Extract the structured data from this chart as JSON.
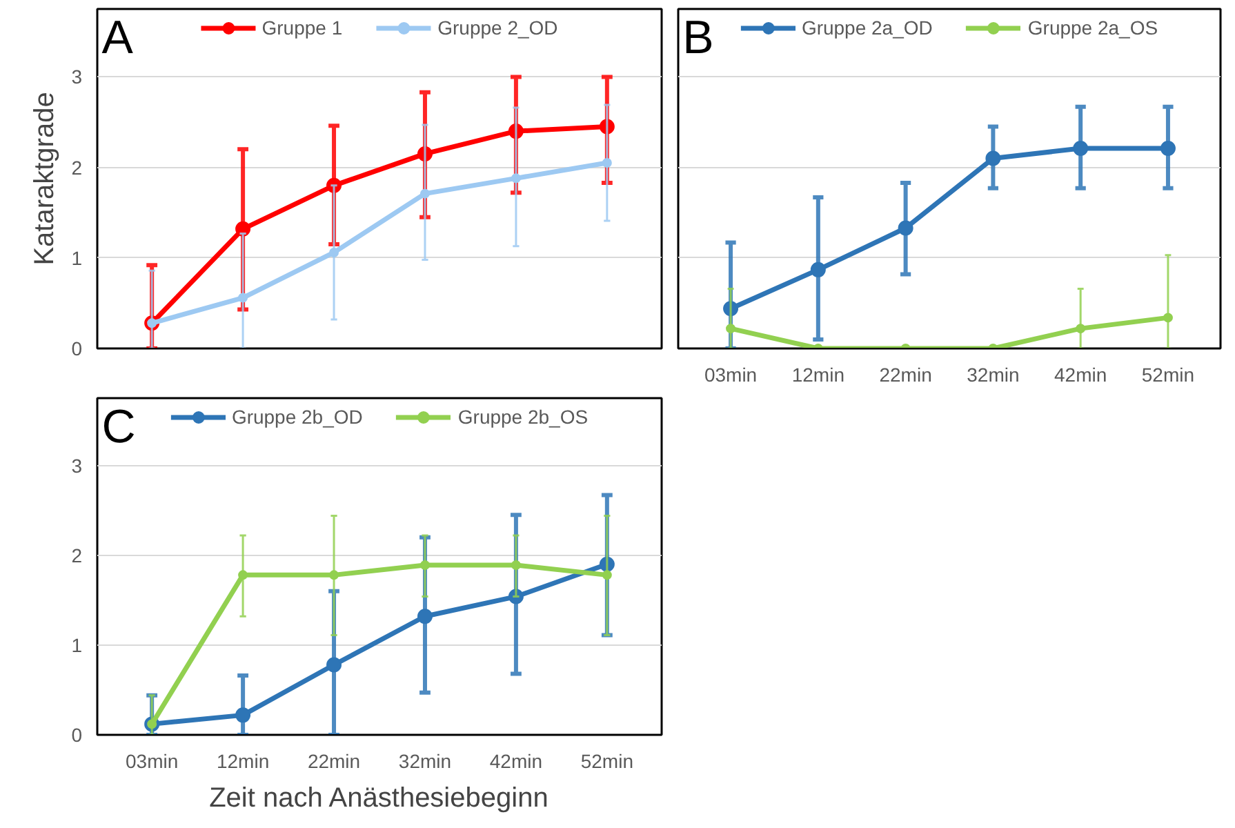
{
  "chart_data": [
    {
      "type": "line",
      "title": "A",
      "ylabel": "Kataraktgrade",
      "categories": [
        null,
        null,
        null,
        null,
        null,
        null
      ],
      "ylim": [
        0,
        3.75
      ],
      "yticks": [
        0,
        1,
        2,
        3
      ],
      "grid": "y",
      "legend": "top",
      "marker": "circle",
      "tick_labels": "y",
      "series": [
        {
          "name": "Gruppe 1",
          "color": "#ff0000",
          "values": [
            0.28,
            1.32,
            1.8,
            2.15,
            2.4,
            2.45
          ],
          "errors": [
            [
              0,
              0.92
            ],
            [
              0.43,
              2.2
            ],
            [
              1.15,
              2.46
            ],
            [
              1.45,
              2.83
            ],
            [
              1.72,
              3
            ],
            [
              1.83,
              3
            ]
          ]
        },
        {
          "name": "Gruppe 2_OD",
          "color": "#9dc9f2",
          "values": [
            0.28,
            0.56,
            1.06,
            1.71,
            1.88,
            2.05
          ],
          "errors": [
            [
              0,
              0.86
            ],
            [
              0,
              1.27
            ],
            [
              0.32,
              1.8
            ],
            [
              0.98,
              2.47
            ],
            [
              1.13,
              2.66
            ],
            [
              1.41,
              2.69
            ]
          ]
        }
      ]
    },
    {
      "type": "line",
      "title": "B",
      "categories": [
        "03min",
        "12min",
        "22min",
        "32min",
        "42min",
        "52min"
      ],
      "ylim": [
        0,
        3.75
      ],
      "yticks": [
        0,
        1,
        2,
        3
      ],
      "grid": "y",
      "legend": "top",
      "marker": "circle",
      "tick_labels": "x",
      "series": [
        {
          "name": "Gruppe 2a_OD",
          "color": "#2e75b6",
          "values": [
            0.44,
            0.87,
            1.33,
            2.1,
            2.21,
            2.21
          ],
          "errors": [
            [
              0,
              1.17
            ],
            [
              0.1,
              1.67
            ],
            [
              0.82,
              1.83
            ],
            [
              1.77,
              2.45
            ],
            [
              1.77,
              2.67
            ],
            [
              1.77,
              2.67
            ]
          ]
        },
        {
          "name": "Gruppe 2a_OS",
          "color": "#92d050",
          "values": [
            0.22,
            0,
            0,
            0,
            0.22,
            0.34
          ],
          "errors": [
            [
              0,
              0.66
            ],
            null,
            null,
            null,
            [
              0,
              0.66
            ],
            [
              0,
              1.03
            ]
          ]
        }
      ]
    },
    {
      "type": "line",
      "title": "C",
      "xlabel": "Zeit nach Anästhesiebeginn",
      "categories": [
        "03min",
        "12min",
        "22min",
        "32min",
        "42min",
        "52min"
      ],
      "ylim": [
        0,
        3.75
      ],
      "yticks": [
        0,
        1,
        2,
        3
      ],
      "grid": "y",
      "legend": "top",
      "marker": "circle",
      "series": [
        {
          "name": "Gruppe 2b_OD",
          "color": "#2e75b6",
          "values": [
            0.12,
            0.22,
            0.78,
            1.32,
            1.54,
            1.9
          ],
          "errors": [
            [
              0,
              0.44
            ],
            [
              0,
              0.66
            ],
            [
              0,
              1.6
            ],
            [
              0.47,
              2.2
            ],
            [
              0.68,
              2.45
            ],
            [
              1.11,
              2.67
            ]
          ]
        },
        {
          "name": "Gruppe 2b_OS",
          "color": "#92d050",
          "values": [
            0.12,
            1.78,
            1.78,
            1.89,
            1.89,
            1.78
          ],
          "errors": [
            [
              0,
              0.44
            ],
            [
              1.32,
              2.22
            ],
            [
              1.11,
              2.44
            ],
            [
              1.54,
              2.22
            ],
            [
              1.54,
              2.22
            ],
            [
              1.11,
              2.44
            ]
          ]
        }
      ]
    }
  ]
}
